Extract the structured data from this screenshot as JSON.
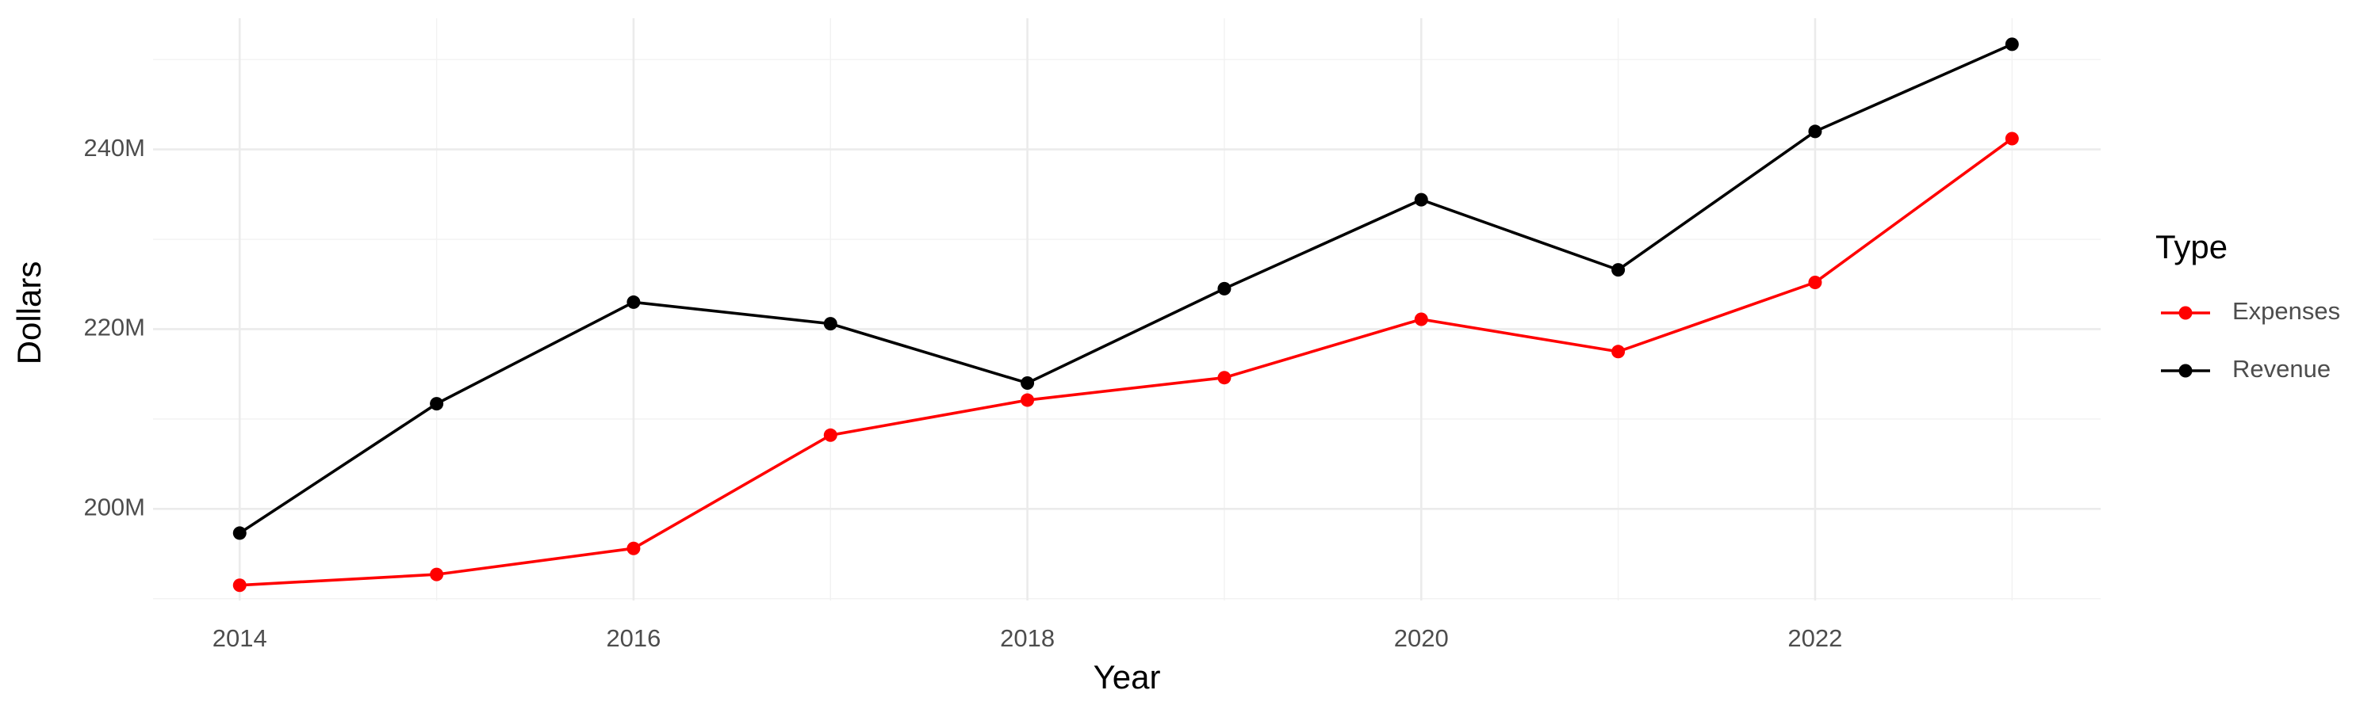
{
  "chart_data": {
    "type": "line",
    "x_label": "Year",
    "y_label": "Dollars",
    "legend_title": "Type",
    "x": [
      2014,
      2015,
      2016,
      2017,
      2018,
      2019,
      2020,
      2021,
      2022,
      2023
    ],
    "series": [
      {
        "name": "Expenses",
        "color": "#ff0000",
        "values": [
          191500000,
          192700000,
          195600000,
          208200000,
          212100000,
          214600000,
          221100000,
          217500000,
          225200000,
          241200000
        ]
      },
      {
        "name": "Revenue",
        "color": "#000000",
        "values": [
          197300000,
          211700000,
          223000000,
          220600000,
          214000000,
          224500000,
          234400000,
          226600000,
          242000000,
          251700000
        ]
      }
    ],
    "xlim": [
      2013.56,
      2023.45
    ],
    "xticks": [
      2014,
      2016,
      2018,
      2020,
      2022
    ],
    "ylim": [
      189800000,
      254600000
    ],
    "yticks": [
      {
        "value": 200000000,
        "label": "200M"
      },
      {
        "value": 220000000,
        "label": "220M"
      },
      {
        "value": 240000000,
        "label": "240M"
      }
    ],
    "grid": true,
    "legend": "right"
  }
}
